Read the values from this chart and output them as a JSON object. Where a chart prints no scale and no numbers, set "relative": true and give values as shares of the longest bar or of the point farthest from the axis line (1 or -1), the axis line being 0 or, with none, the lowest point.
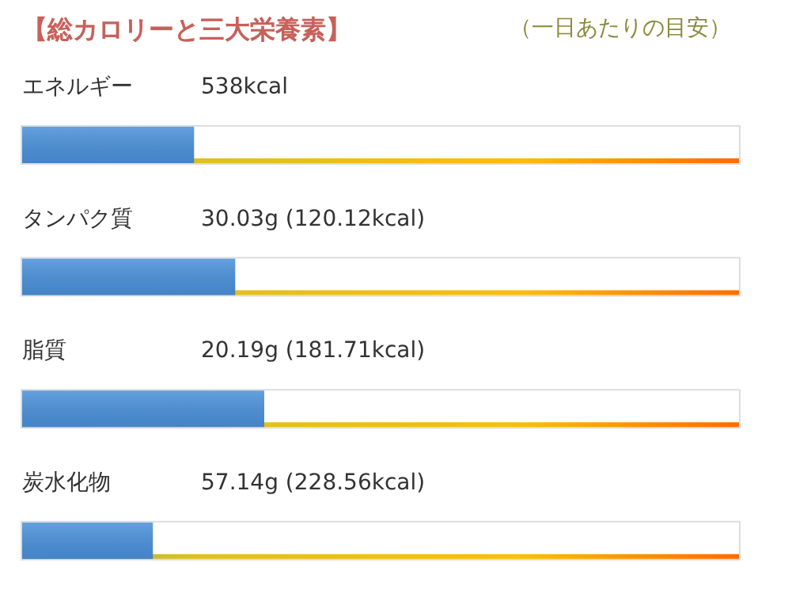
{
  "chart_data": {
    "type": "bar",
    "orientation": "horizontal",
    "relative": true,
    "title": "【総カロリーと三大栄養素】",
    "subtitle": "（一日あたりの目安）",
    "categories": [
      "エネルギー",
      "タンパク質",
      "脂質",
      "炭水化物"
    ],
    "values": [
      0.71,
      0.88,
      1,
      0.54
    ],
    "annotations": [
      "538kcal",
      "30.03g (120.12kcal)",
      "20.19g (181.71kcal)",
      "57.14g (228.56kcal)"
    ],
    "color": "#4a90d9"
  }
}
